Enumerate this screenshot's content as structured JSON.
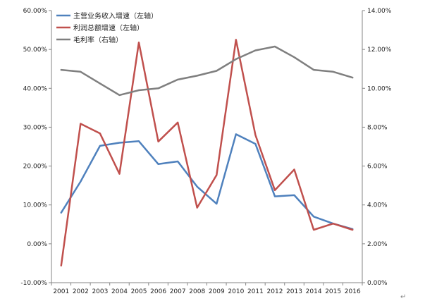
{
  "chart_data": {
    "type": "line",
    "categories": [
      "2001",
      "2002",
      "2003",
      "2004",
      "2005",
      "2006",
      "2007",
      "2008",
      "2009",
      "2010",
      "2011",
      "2012",
      "2013",
      "2014",
      "2015",
      "2016"
    ],
    "y_left": {
      "range": [
        -10,
        60
      ],
      "ticks": [
        "-10.00%",
        "0.00%",
        "10.00%",
        "20.00%",
        "30.00%",
        "40.00%",
        "50.00%",
        "60.00%"
      ]
    },
    "y_right": {
      "range": [
        0,
        14
      ],
      "ticks": [
        "0.00%",
        "2.00%",
        "4.00%",
        "6.00%",
        "8.00%",
        "10.00%",
        "12.00%",
        "14.00%"
      ]
    },
    "grid": false,
    "legend_position": "top-left",
    "series": [
      {
        "name": "主营业务收入增速（左轴）",
        "axis": "left",
        "color": "#4F81BD",
        "values": [
          8.0,
          16.0,
          25.2,
          26.0,
          26.4,
          20.5,
          21.2,
          14.7,
          10.3,
          28.2,
          25.7,
          12.2,
          12.5,
          7.0,
          5.2,
          3.8
        ]
      },
      {
        "name": "利润总额增速（左轴）",
        "axis": "left",
        "color": "#C0504D",
        "values": [
          -5.6,
          30.9,
          28.4,
          18.0,
          51.8,
          26.3,
          31.2,
          9.3,
          17.7,
          52.5,
          28.0,
          13.8,
          19.1,
          3.6,
          5.2,
          3.6
        ]
      },
      {
        "name": "毛利率（右轴）",
        "axis": "right",
        "color": "#7F7F7F",
        "values": [
          10.95,
          10.85,
          10.25,
          9.65,
          9.9,
          10.0,
          10.45,
          10.65,
          10.9,
          11.5,
          11.95,
          12.15,
          11.6,
          10.95,
          10.85,
          10.55
        ]
      }
    ]
  },
  "return_mark": "↵"
}
